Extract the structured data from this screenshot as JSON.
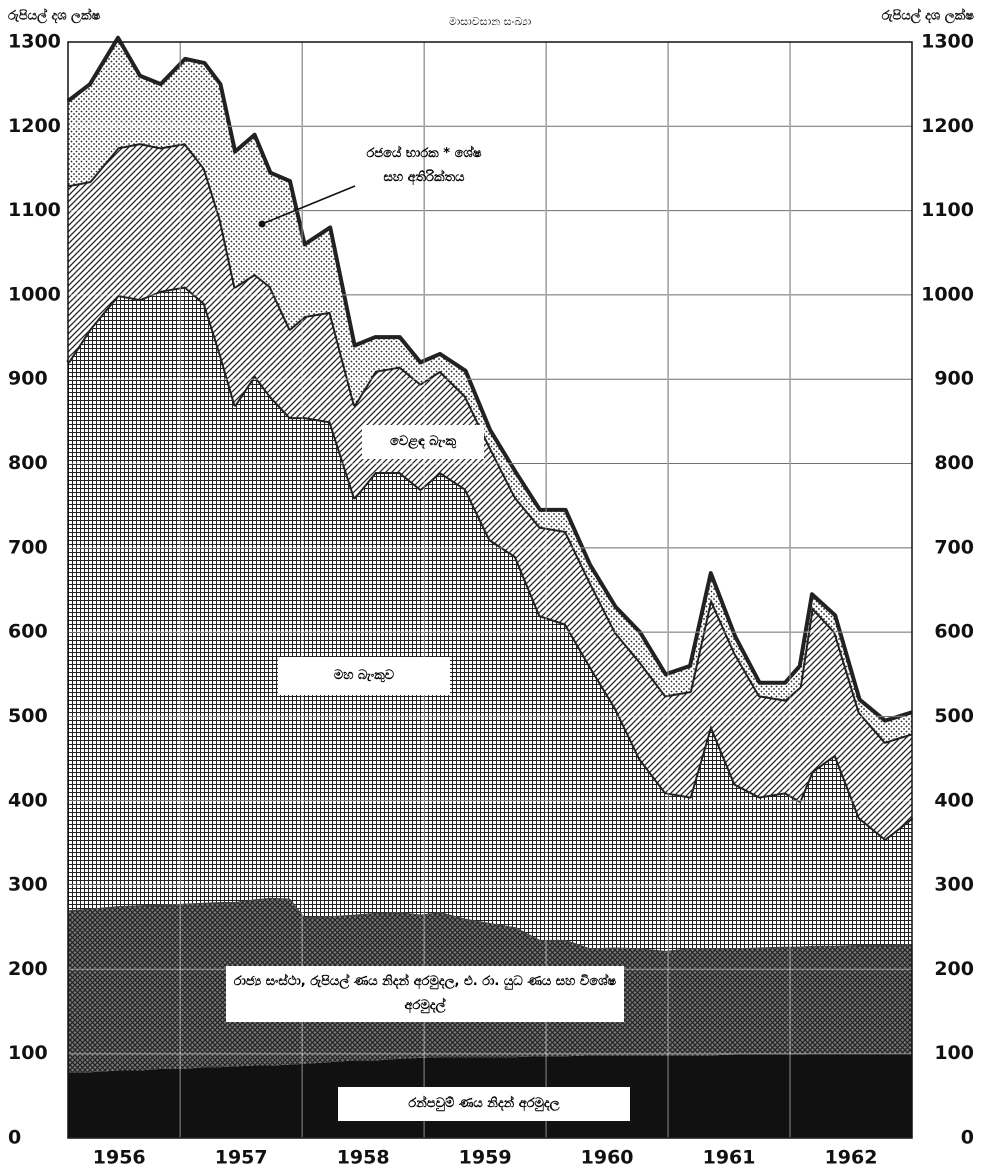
{
  "chart_data": {
    "type": "stacked_area",
    "unit_label": "රුපියල් දශ ලක්ෂ",
    "subtitle": "මාසාවසාන සංඛ්‍යා",
    "x": [
      1956.08,
      1956.26,
      1956.49,
      1956.67,
      1956.84,
      1957.04,
      1957.2,
      1957.33,
      1957.45,
      1957.61,
      1957.74,
      1957.9,
      1958.02,
      1958.23,
      1958.43,
      1958.6,
      1958.8,
      1958.97,
      1959.13,
      1959.34,
      1959.54,
      1959.75,
      1959.95,
      1960.16,
      1960.36,
      1960.57,
      1960.77,
      1960.98,
      1961.18,
      1961.35,
      1961.55,
      1961.75,
      1961.96,
      1962.08,
      1962.18,
      1962.37,
      1962.57,
      1962.78,
      1963.0
    ],
    "xlim": [
      1956.08,
      1963
    ],
    "xticks": [
      {
        "value": 1956.5,
        "label": "1956"
      },
      {
        "value": 1957.5,
        "label": "1957"
      },
      {
        "value": 1958.5,
        "label": "1958"
      },
      {
        "value": 1959.5,
        "label": "1959"
      },
      {
        "value": 1960.5,
        "label": "1960"
      },
      {
        "value": 1961.5,
        "label": "1961"
      },
      {
        "value": 1962.5,
        "label": "1962"
      }
    ],
    "xgrid": [
      1957,
      1958,
      1959,
      1960,
      1961,
      1962
    ],
    "ylim": [
      0,
      1300
    ],
    "yticks": [
      0,
      100,
      200,
      300,
      400,
      500,
      600,
      700,
      800,
      900,
      1000,
      1100,
      1200,
      1300
    ],
    "grid": true,
    "series": [
      {
        "name": "රන්පවුම් ණය නිදන් අරමුදල",
        "color": "#111111",
        "pattern": "solid",
        "values": [
          78,
          78,
          80,
          80,
          82,
          82,
          84,
          84,
          85,
          86,
          86,
          87,
          88,
          90,
          92,
          92,
          94,
          95,
          96,
          96,
          96,
          96,
          97,
          97,
          98,
          98,
          98,
          98,
          98,
          98,
          99,
          99,
          99,
          99,
          100,
          100,
          100,
          100,
          100
        ]
      },
      {
        "name": "රාජ්‍ය සංස්ථා, රුපියල් ණය නිදන් අරමුදල, එ. රා. යුධ ණය සහ විශේෂ අරමුදල්",
        "color": "#444444",
        "pattern": "crosshatch",
        "values": [
          192,
          194,
          195,
          196,
          195,
          196,
          195,
          196,
          195,
          197,
          199,
          197,
          174,
          173,
          173,
          175,
          174,
          170,
          172,
          164,
          159,
          154,
          138,
          138,
          127,
          128,
          127,
          124,
          127,
          127,
          126,
          127,
          128,
          128,
          128,
          128,
          129,
          129,
          130
        ]
      },
      {
        "name": "මහ බැංකුව",
        "color": "#222222",
        "pattern": "grid",
        "values": [
          650,
          688,
          725,
          719,
          728,
          732,
          711,
          650,
          590,
          622,
          595,
          571,
          593,
          587,
          495,
          523,
          522,
          505,
          522,
          510,
          455,
          440,
          385,
          375,
          335,
          284,
          225,
          188,
          180,
          265,
          195,
          179,
          183,
          173,
          207,
          227,
          151,
          126,
          150
        ]
      },
      {
        "name": "වෙළඳ බැංකු",
        "color": "#222222",
        "pattern": "hatch",
        "values": [
          210,
          175,
          175,
          185,
          170,
          170,
          160,
          160,
          140,
          120,
          130,
          105,
          120,
          130,
          110,
          120,
          125,
          125,
          120,
          110,
          110,
          70,
          105,
          110,
          100,
          90,
          115,
          115,
          125,
          150,
          155,
          120,
          110,
          135,
          195,
          145,
          125,
          115,
          100
        ]
      },
      {
        "name": "රජයේ භාරක * ශේෂ සහ අතිරික්තය",
        "color": "#222222",
        "pattern": "dots",
        "values": [
          100,
          115,
          130,
          80,
          75,
          100,
          125,
          160,
          160,
          165,
          135,
          175,
          85,
          100,
          70,
          40,
          35,
          25,
          20,
          30,
          20,
          30,
          20,
          25,
          20,
          30,
          35,
          25,
          30,
          30,
          20,
          15,
          20,
          25,
          15,
          20,
          15,
          25,
          25
        ]
      }
    ]
  }
}
